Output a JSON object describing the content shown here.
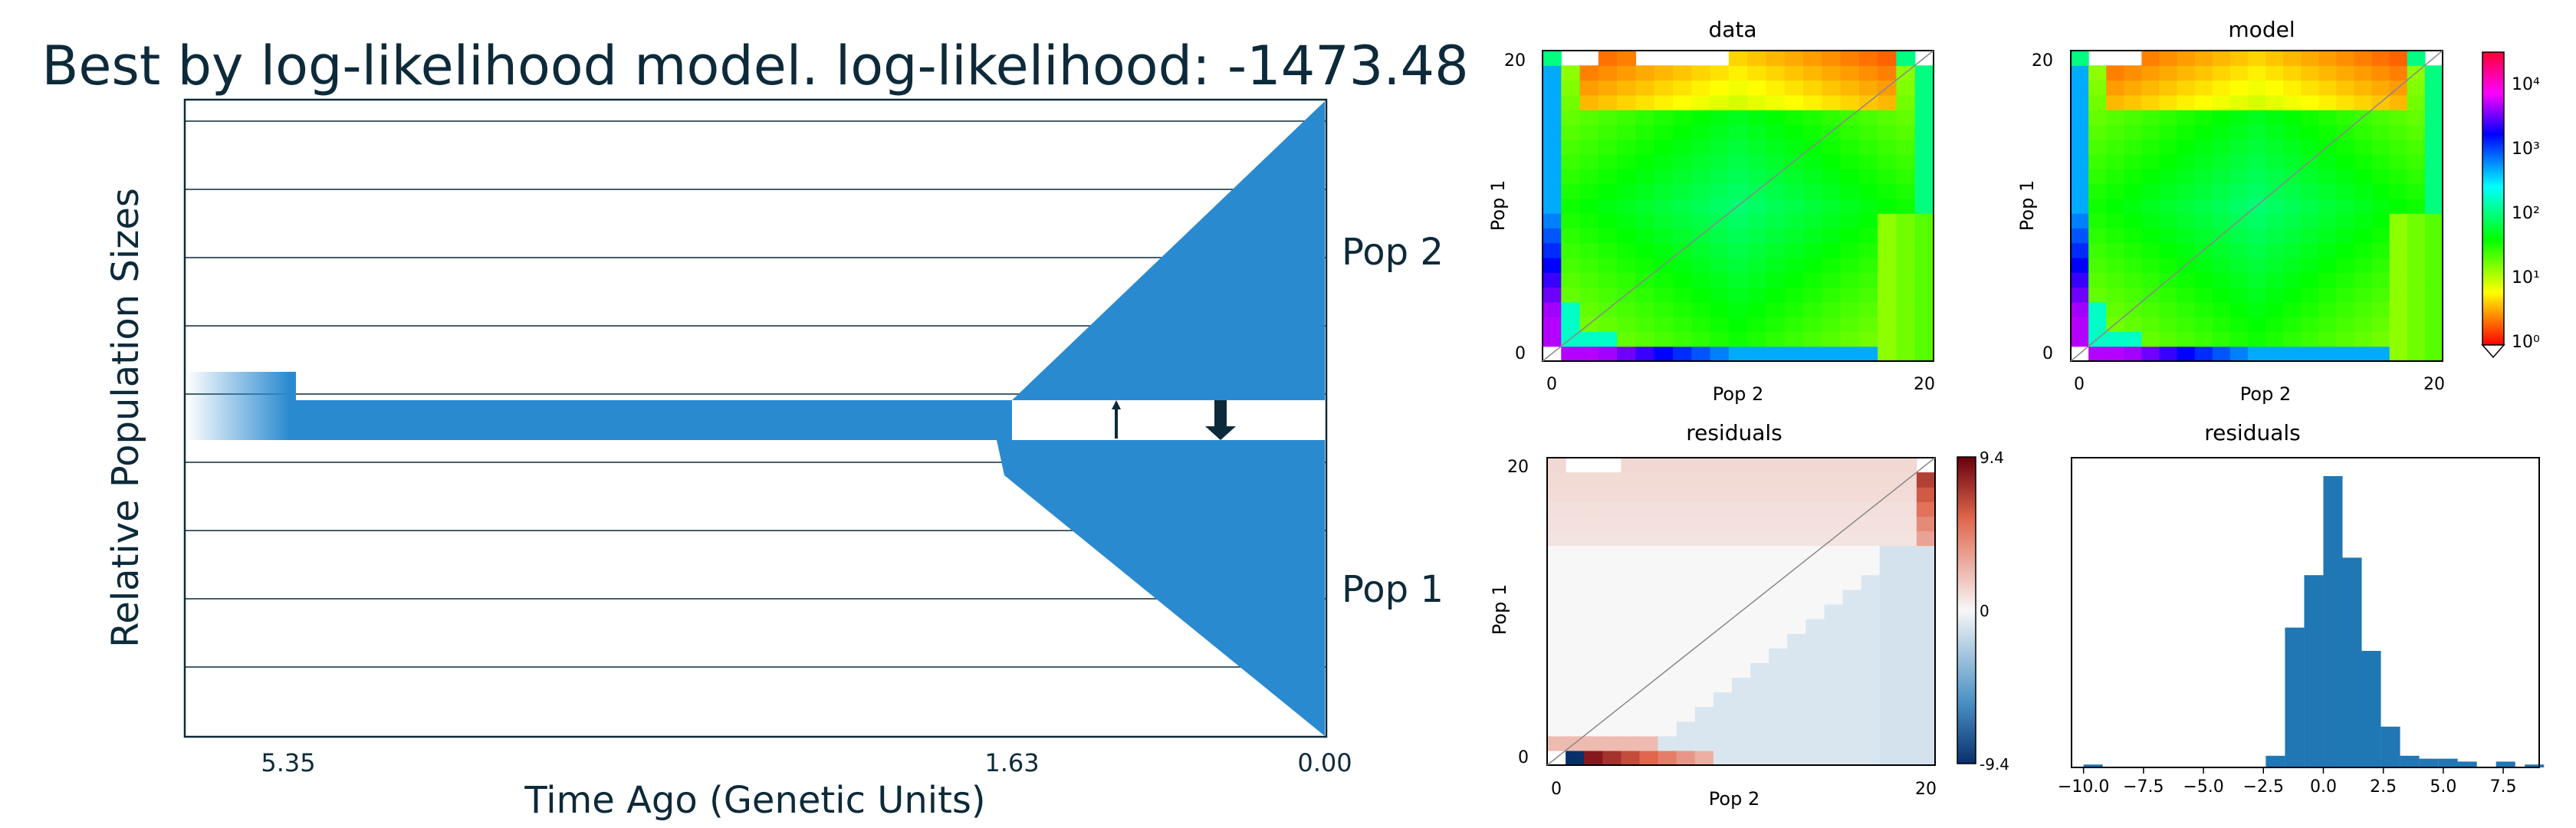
{
  "colors": {
    "pop_fill": "#2a8ad0",
    "frame": "#0d2a3a",
    "text": "#0d2a3a",
    "hist_bar": "#1f77b4"
  },
  "demography": {
    "title": "Best by log-likelihood model. log-likelihood: -1473.48",
    "ylabel": "Relative Population Sizes",
    "xlabel": "Time Ago (Genetic Units)",
    "tick_labels": [
      "5.35",
      "1.63",
      "0.00"
    ],
    "pop_labels": [
      "Pop 2",
      "Pop 1"
    ]
  },
  "sfs": {
    "data_title": "data",
    "model_title": "model",
    "residuals_title": "residuals",
    "hist_title": "residuals",
    "xlabel": "Pop 2",
    "ylabel": "Pop 1",
    "axis_ticks": [
      "0",
      "20"
    ],
    "colorbar_ticks": [
      "10⁴",
      "10³",
      "10²",
      "10¹",
      "10⁰"
    ],
    "residual_colorbar_ticks": [
      "9.4",
      "0",
      "-9.4"
    ],
    "hist_xticks": [
      "−10.0",
      "−7.5",
      "−5.0",
      "−2.5",
      "0.0",
      "2.5",
      "5.0",
      "7.5"
    ]
  },
  "chart_data": [
    {
      "type": "area",
      "title": "Best by log-likelihood model. log-likelihood: -1473.48",
      "xlabel": "Time Ago (Genetic Units)",
      "ylabel": "Relative Population Sizes",
      "x_ticks": [
        5.35,
        1.63,
        0.0
      ],
      "series": [
        {
          "name": "Pop 2",
          "size_at_split": 0.05,
          "size_at_present": 1.0
        },
        {
          "name": "Pop 1",
          "size_at_split": 0.05,
          "size_at_present": 1.0
        }
      ],
      "ancestral_size": 0.1,
      "split_time": 1.63
    },
    {
      "type": "heatmap",
      "title": "data",
      "xlabel": "Pop 2",
      "ylabel": "Pop 1",
      "xlim": [
        0,
        20
      ],
      "ylim": [
        0,
        20
      ],
      "color_scale": "log",
      "color_range": [
        1,
        30000
      ]
    },
    {
      "type": "heatmap",
      "title": "model",
      "xlabel": "Pop 2",
      "ylabel": "Pop 1",
      "xlim": [
        0,
        20
      ],
      "ylim": [
        0,
        20
      ],
      "color_scale": "log",
      "color_range": [
        1,
        30000
      ]
    },
    {
      "type": "heatmap",
      "title": "residuals",
      "xlabel": "Pop 2",
      "ylabel": "Pop 1",
      "xlim": [
        0,
        20
      ],
      "ylim": [
        0,
        20
      ],
      "color_range": [
        -9.4,
        9.4
      ]
    },
    {
      "type": "bar",
      "title": "residuals",
      "bin_width": 0.8,
      "bin_start": -2.4,
      "counts": [
        4,
        48,
        66,
        100,
        72,
        40,
        14,
        4,
        3,
        3,
        2
      ],
      "outlier_bins": [
        {
          "x": -10.0,
          "count": 1
        },
        {
          "x": 5.2,
          "count": 2
        },
        {
          "x": 7.2,
          "count": 2
        },
        {
          "x": 8.4,
          "count": 1
        }
      ],
      "xlim": [
        -10.5,
        9.0
      ]
    }
  ]
}
